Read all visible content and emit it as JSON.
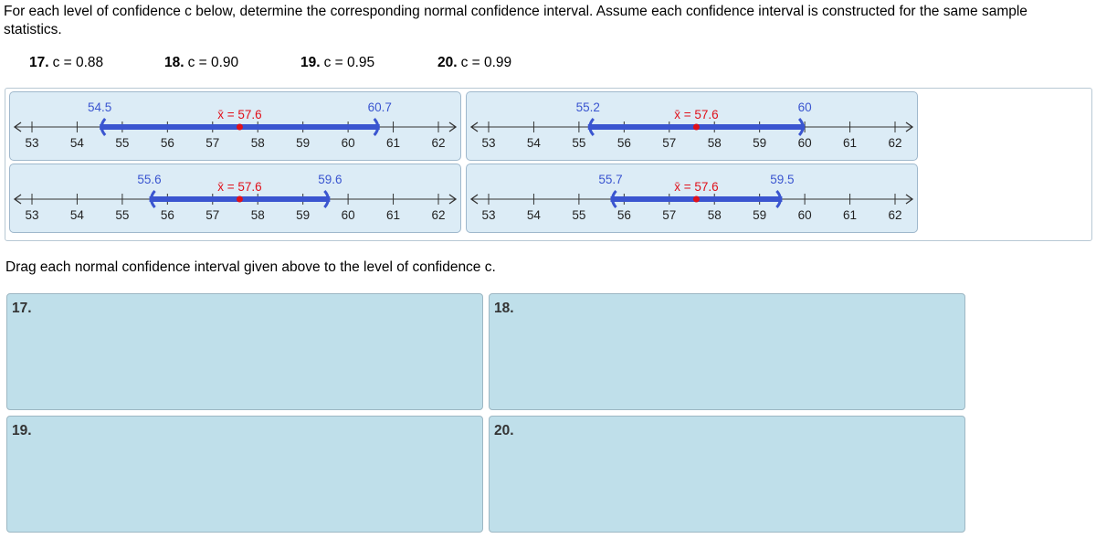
{
  "instructions": "For each level of confidence c below, determine the corresponding normal confidence interval. Assume each confidence interval is constructed for the same sample statistics.",
  "levels": [
    {
      "number": "17.",
      "confidence": "c = 0.88"
    },
    {
      "number": "18.",
      "confidence": "c = 0.90"
    },
    {
      "number": "19.",
      "confidence": "c = 0.95"
    },
    {
      "number": "20.",
      "confidence": "c = 0.99"
    }
  ],
  "intervals": [
    {
      "lower": 54.5,
      "upper": 60.7,
      "mean": 57.6,
      "mean_label": "x̄ = 57.6",
      "ticks": [
        53,
        54,
        55,
        56,
        57,
        58,
        59,
        60,
        61,
        62
      ]
    },
    {
      "lower": 55.2,
      "upper": 60,
      "mean": 57.6,
      "mean_label": "x̄ = 57.6",
      "ticks": [
        53,
        54,
        55,
        56,
        57,
        58,
        59,
        60,
        61,
        62
      ]
    },
    {
      "lower": 55.6,
      "upper": 59.6,
      "mean": 57.6,
      "mean_label": "x̄ = 57.6",
      "ticks": [
        53,
        54,
        55,
        56,
        57,
        58,
        59,
        60,
        61,
        62
      ]
    },
    {
      "lower": 55.7,
      "upper": 59.5,
      "mean": 57.6,
      "mean_label": "x̄ = 57.6",
      "ticks": [
        53,
        54,
        55,
        56,
        57,
        58,
        59,
        60,
        61,
        62
      ]
    }
  ],
  "drag_instruction": "Drag each normal confidence interval given above to the level of confidence c.",
  "drop_zones": [
    "17.",
    "18.",
    "19.",
    "20."
  ]
}
